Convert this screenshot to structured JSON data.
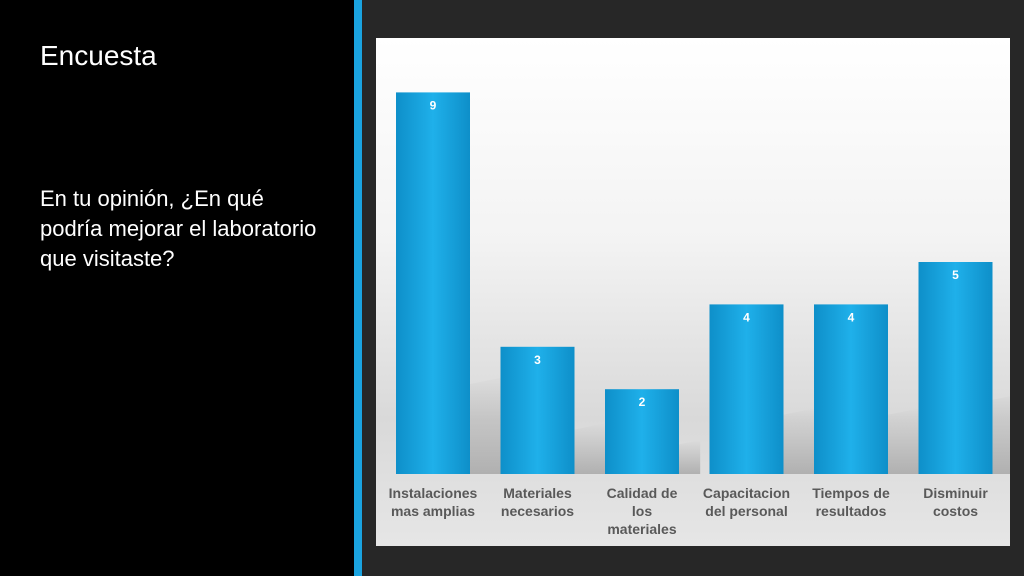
{
  "slide": {
    "title": "Encuesta",
    "question": "En tu opinión, ¿En qué podría mejorar el laboratorio que visitaste?"
  },
  "colors": {
    "accent": "#1aa3e0",
    "bar": "#1aa3e0",
    "left_panel": "#000000",
    "right_panel": "#272727"
  },
  "chart_data": {
    "type": "bar",
    "categories": [
      "Instalaciones mas amplias",
      "Materiales necesarios",
      "Calidad de los materiales",
      "Capacitacion del personal",
      "Tiempos de resultados",
      "Disminuir costos"
    ],
    "category_lines": [
      [
        "Instalaciones",
        "mas amplias"
      ],
      [
        "Materiales",
        "necesarios"
      ],
      [
        "Calidad de",
        "los",
        "materiales"
      ],
      [
        "Capacitacion",
        "del personal"
      ],
      [
        "Tiempos de",
        "resultados"
      ],
      [
        "Disminuir",
        "costos"
      ]
    ],
    "values": [
      9,
      3,
      2,
      4,
      4,
      5
    ],
    "data_labels": true,
    "ylim": [
      0,
      10
    ],
    "grid": false,
    "legend": "none"
  }
}
